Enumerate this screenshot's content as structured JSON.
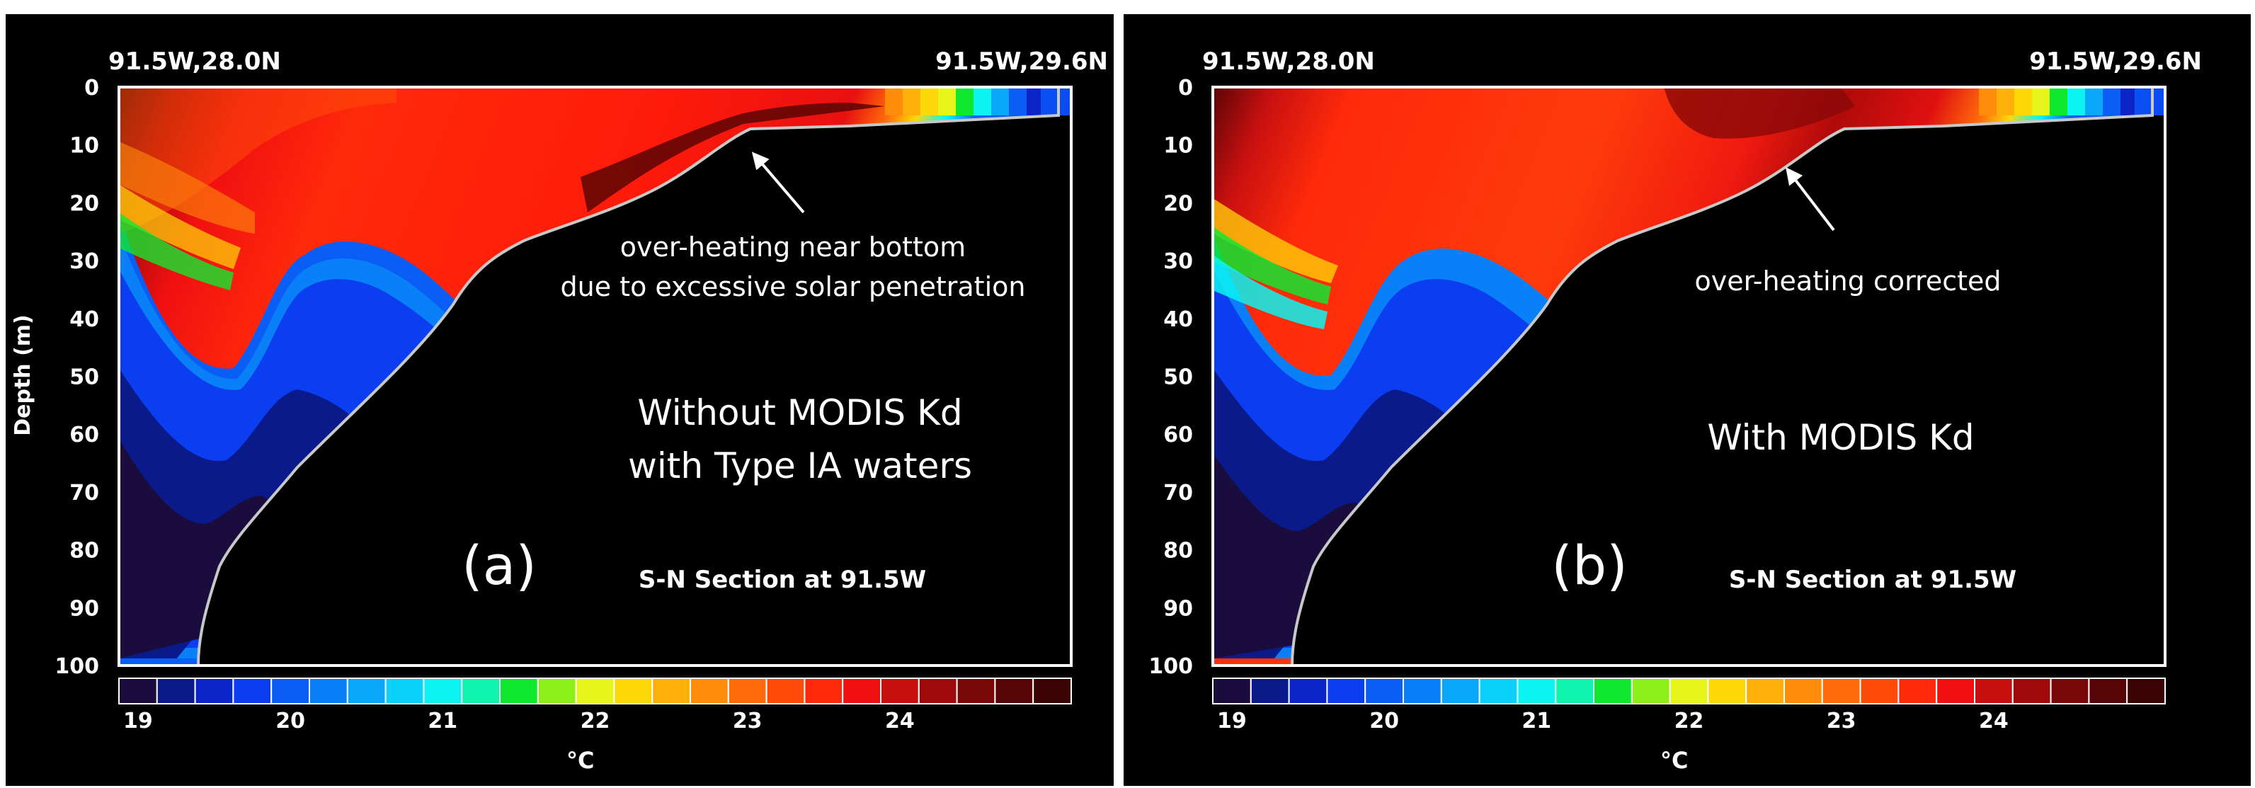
{
  "chart_data": [
    {
      "type": "heatmap",
      "panel_label": "(a)",
      "corner_left": "91.5W,28.0N",
      "corner_right": "91.5W,29.6N",
      "ylabel": "Depth (m)",
      "yticks": [
        0,
        10,
        20,
        30,
        40,
        50,
        60,
        70,
        80,
        90,
        100
      ],
      "ylim": [
        0,
        100
      ],
      "section_label": "S-N Section at 91.5W",
      "annotation": [
        "over-heating near bottom",
        "due to excessive solar penetration"
      ],
      "case_label": [
        "Without MODIS Kd",
        "with Type IA waters"
      ],
      "colorbar": {
        "ticks": [
          "19",
          "20",
          "21",
          "22",
          "23",
          "24"
        ],
        "unit": "°C"
      }
    },
    {
      "type": "heatmap",
      "panel_label": "(b)",
      "corner_left": "91.5W,28.0N",
      "corner_right": "91.5W,29.6N",
      "ylabel": "Depth (m)",
      "yticks": [
        0,
        10,
        20,
        30,
        40,
        50,
        60,
        70,
        80,
        90,
        100
      ],
      "ylim": [
        0,
        100
      ],
      "section_label": "S-N Section at 91.5W",
      "annotation": [
        "over-heating corrected"
      ],
      "case_label": [
        "With MODIS Kd"
      ],
      "colorbar": {
        "ticks": [
          "19",
          "20",
          "21",
          "22",
          "23",
          "24"
        ],
        "unit": "°C"
      }
    }
  ],
  "colors": {
    "background": "#000000",
    "frame": "#ffffff",
    "bottom_line": "#c8c8c8",
    "colorbar": [
      "#1a0d3d",
      "#0b1a8a",
      "#0a24c8",
      "#0a3ef0",
      "#0a5ef5",
      "#0a80f8",
      "#0aa8fa",
      "#0ad2fc",
      "#0af5f2",
      "#0ff5b0",
      "#10e830",
      "#8ef01a",
      "#e8f51a",
      "#ffd80a",
      "#ffb00a",
      "#ff8c0a",
      "#ff6a0a",
      "#ff4a0a",
      "#ff2a0a",
      "#f01010",
      "#c81010",
      "#a00a0a",
      "#7a0808",
      "#5a0505",
      "#3c0303"
    ]
  }
}
